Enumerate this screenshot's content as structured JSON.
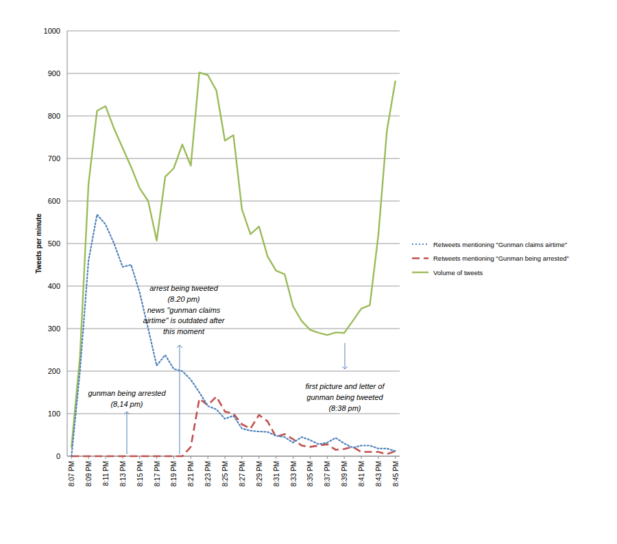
{
  "chart_data": {
    "type": "line",
    "y_label": "Tweets per minute",
    "categories": [
      "8:07 PM",
      null,
      "8:09 PM",
      null,
      "8:11 PM",
      null,
      "8:13 PM",
      null,
      "8:15 PM",
      null,
      "8:17 PM",
      null,
      "8:19 PM",
      null,
      "8:21 PM",
      null,
      "8:23 PM",
      null,
      "8:25 PM",
      null,
      "8:27 PM",
      null,
      "8:29 PM",
      null,
      "8:31 PM",
      null,
      "8:33 PM",
      null,
      "8:35 PM",
      null,
      "8:37 PM",
      null,
      "8:39 PM",
      null,
      "8:41 PM",
      null,
      "8:43 PM",
      null,
      "8:45 PM"
    ],
    "series": [
      {
        "name": "Retweets mentioning \"Gunman claims airtime\"",
        "color": "#4f81bd",
        "line_style": "dotted",
        "values": [
          0,
          200,
          460,
          568,
          545,
          500,
          445,
          450,
          385,
          300,
          213,
          238,
          205,
          200,
          180,
          150,
          118,
          110,
          88,
          95,
          65,
          60,
          58,
          57,
          48,
          45,
          32,
          45,
          38,
          28,
          32,
          43,
          30,
          20,
          25,
          25,
          18,
          18,
          12
        ]
      },
      {
        "name": "Retweets mentioning \"Gunman being arrested\"",
        "color": "#c0504d",
        "line_style": "dashed",
        "values": [
          0,
          0,
          0,
          0,
          0,
          0,
          0,
          0,
          0,
          0,
          0,
          0,
          0,
          0,
          22,
          135,
          120,
          140,
          105,
          100,
          75,
          65,
          97,
          82,
          45,
          52,
          40,
          25,
          22,
          25,
          28,
          15,
          17,
          22,
          10,
          10,
          10,
          5,
          12
        ]
      },
      {
        "name": "Volume of tweets",
        "color": "#9bbb59",
        "line_style": "solid",
        "values": [
          20,
          234,
          640,
          812,
          823,
          770,
          725,
          680,
          630,
          600,
          507,
          657,
          677,
          733,
          683,
          902,
          896,
          860,
          742,
          755,
          580,
          522,
          540,
          470,
          436,
          428,
          352,
          318,
          297,
          290,
          285,
          291,
          290,
          318,
          347,
          355,
          520,
          765,
          883
        ]
      }
    ],
    "ylim": [
      0,
      1000
    ],
    "yticks": [
      0,
      100,
      200,
      300,
      400,
      500,
      600,
      700,
      800,
      900,
      1000
    ],
    "grid": true,
    "legend": "right",
    "annotations": [
      {
        "text": [
          "gunman being arrested",
          "(8,14 pm)"
        ]
      },
      {
        "text": [
          "arrest being tweeted",
          "(8.20 pm)",
          "news \"gunman claims",
          "airtime\" is outdated after",
          "this moment"
        ]
      },
      {
        "text": [
          "first picture and letter of",
          "gunman being tweeted",
          "(8:38 pm)"
        ]
      }
    ]
  }
}
